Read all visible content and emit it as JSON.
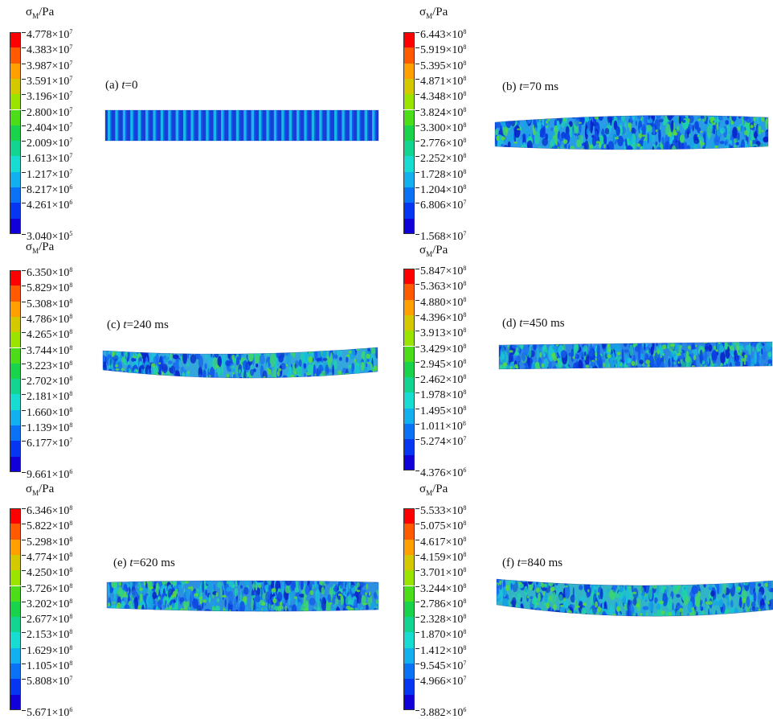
{
  "legend_title": {
    "sym": "σ",
    "sub": "M",
    "unit": "/Pa"
  },
  "times_symbol": "×",
  "colors": [
    "#ff0000",
    "#ff5a00",
    "#ffa000",
    "#d4c800",
    "#9be400",
    "#4ddc18",
    "#19d34c",
    "#14d491",
    "#18dcd2",
    "#12b0ee",
    "#0a72f4",
    "#0636f0",
    "#1200d8"
  ],
  "panels": [
    {
      "id": "a",
      "caption_pre": "(a) ",
      "caption_var": "t",
      "caption_post": "=0",
      "ticks": [
        [
          "4.778",
          "7"
        ],
        [
          "4.383",
          "7"
        ],
        [
          "3.987",
          "7"
        ],
        [
          "3.591",
          "7"
        ],
        [
          "3.196",
          "7"
        ],
        [
          "2.800",
          "7"
        ],
        [
          "2.404",
          "7"
        ],
        [
          "2.009",
          "7"
        ],
        [
          "1.613",
          "7"
        ],
        [
          "1.217",
          "7"
        ],
        [
          "8.217",
          "6"
        ],
        [
          "4.261",
          "6"
        ],
        [
          "3.040",
          "5"
        ]
      ]
    },
    {
      "id": "b",
      "caption_pre": "(b) ",
      "caption_var": "t",
      "caption_post": "=70 ms",
      "ticks": [
        [
          "6.443",
          "8"
        ],
        [
          "5.919",
          "8"
        ],
        [
          "5.395",
          "8"
        ],
        [
          "4.871",
          "8"
        ],
        [
          "4.348",
          "8"
        ],
        [
          "3.824",
          "8"
        ],
        [
          "3.300",
          "8"
        ],
        [
          "2.776",
          "8"
        ],
        [
          "2.252",
          "8"
        ],
        [
          "1.728",
          "8"
        ],
        [
          "1.204",
          "8"
        ],
        [
          "6.806",
          "7"
        ],
        [
          "1.568",
          "7"
        ]
      ]
    },
    {
      "id": "c",
      "caption_pre": "(c) ",
      "caption_var": "t",
      "caption_post": "=240 ms",
      "ticks": [
        [
          "6.350",
          "8"
        ],
        [
          "5.829",
          "8"
        ],
        [
          "5.308",
          "8"
        ],
        [
          "4.786",
          "8"
        ],
        [
          "4.265",
          "8"
        ],
        [
          "3.744",
          "8"
        ],
        [
          "3.223",
          "8"
        ],
        [
          "2.702",
          "8"
        ],
        [
          "2.181",
          "8"
        ],
        [
          "1.660",
          "8"
        ],
        [
          "1.139",
          "8"
        ],
        [
          "6.177",
          "7"
        ],
        [
          "9.661",
          "6"
        ]
      ]
    },
    {
      "id": "d",
      "caption_pre": "(d) ",
      "caption_var": "t",
      "caption_post": "=450 ms",
      "ticks": [
        [
          "5.847",
          "8"
        ],
        [
          "5.363",
          "8"
        ],
        [
          "4.880",
          "8"
        ],
        [
          "4.396",
          "8"
        ],
        [
          "3.913",
          "8"
        ],
        [
          "3.429",
          "8"
        ],
        [
          "2.945",
          "8"
        ],
        [
          "2.462",
          "8"
        ],
        [
          "1.978",
          "8"
        ],
        [
          "1.495",
          "8"
        ],
        [
          "1.011",
          "8"
        ],
        [
          "5.274",
          "7"
        ],
        [
          "4.376",
          "6"
        ]
      ]
    },
    {
      "id": "e",
      "caption_pre": "(e) ",
      "caption_var": "t",
      "caption_post": "=620 ms",
      "ticks": [
        [
          "6.346",
          "8"
        ],
        [
          "5.822",
          "8"
        ],
        [
          "5.298",
          "8"
        ],
        [
          "4.774",
          "8"
        ],
        [
          "4.250",
          "8"
        ],
        [
          "3.726",
          "8"
        ],
        [
          "3.202",
          "8"
        ],
        [
          "2.677",
          "8"
        ],
        [
          "2.153",
          "8"
        ],
        [
          "1.629",
          "8"
        ],
        [
          "1.105",
          "8"
        ],
        [
          "5.808",
          "7"
        ],
        [
          "5.671",
          "6"
        ]
      ]
    },
    {
      "id": "f",
      "caption_pre": "(f) ",
      "caption_var": "t",
      "caption_post": "=840 ms",
      "ticks": [
        [
          "5.533",
          "8"
        ],
        [
          "5.075",
          "8"
        ],
        [
          "4.617",
          "8"
        ],
        [
          "4.159",
          "8"
        ],
        [
          "3.701",
          "8"
        ],
        [
          "3.244",
          "8"
        ],
        [
          "2.786",
          "8"
        ],
        [
          "2.328",
          "8"
        ],
        [
          "1.870",
          "8"
        ],
        [
          "1.412",
          "8"
        ],
        [
          "9.545",
          "7"
        ],
        [
          "4.966",
          "7"
        ],
        [
          "3.882",
          "6"
        ]
      ]
    }
  ]
}
